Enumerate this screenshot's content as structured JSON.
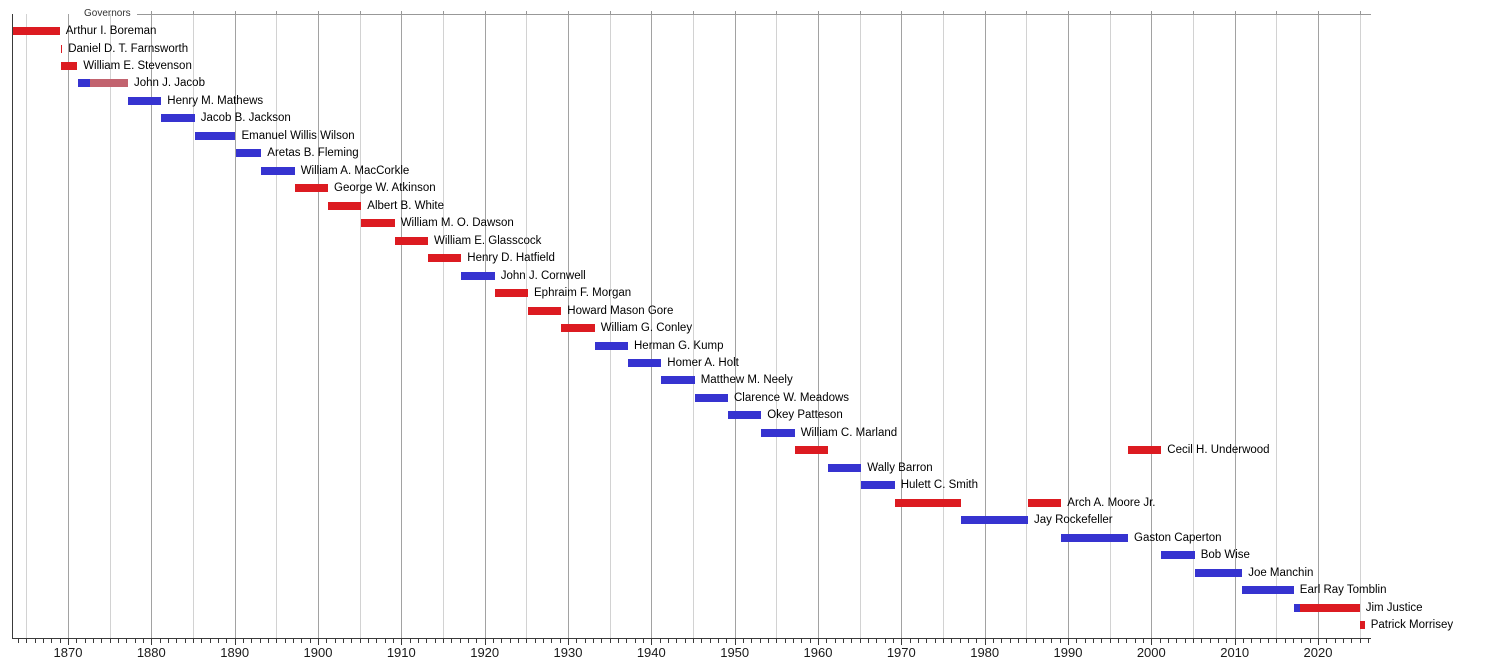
{
  "chart_data": {
    "type": "timeline",
    "title": "Governors",
    "x_axis": {
      "min_year": 1863.3,
      "max_year": 2026.4,
      "tick_labels": [
        "1870",
        "1880",
        "1890",
        "1900",
        "1910",
        "1920",
        "1930",
        "1940",
        "1950",
        "1960",
        "1970",
        "1980",
        "1990",
        "2000",
        "2010",
        "2020"
      ],
      "label_step": 10,
      "grid_step": 5,
      "minor_tick_step": 1,
      "grid_on": true
    },
    "colors": {
      "red": "#dc1b21",
      "blue": "#3633d0",
      "rose": "#c2636f",
      "grid_minor": "#d2d2d2",
      "grid_major": "#a2a2a2",
      "axis": "#3a3a3a",
      "top_border": "#989898",
      "label_text": "#000000",
      "title_text": "#333333"
    },
    "rows": [
      {
        "name": "Arthur I. Boreman",
        "segments": [
          {
            "start": 1863.4,
            "end": 1869.0,
            "color": "red"
          }
        ]
      },
      {
        "name": "Daniel D. T. Farnsworth",
        "segments": [
          {
            "start": 1869.1,
            "end": 1869.3,
            "color": "red"
          }
        ]
      },
      {
        "name": "William E. Stevenson",
        "segments": [
          {
            "start": 1869.2,
            "end": 1871.1,
            "color": "red"
          }
        ]
      },
      {
        "name": "John J. Jacob",
        "segments": [
          {
            "start": 1871.2,
            "end": 1872.6,
            "color": "blue"
          },
          {
            "start": 1872.6,
            "end": 1877.2,
            "color": "rose"
          }
        ]
      },
      {
        "name": "Henry M. Mathews",
        "segments": [
          {
            "start": 1877.2,
            "end": 1881.2,
            "color": "blue"
          }
        ]
      },
      {
        "name": "Jacob B. Jackson",
        "segments": [
          {
            "start": 1881.2,
            "end": 1885.2,
            "color": "blue"
          }
        ]
      },
      {
        "name": "Emanuel Willis Wilson",
        "segments": [
          {
            "start": 1885.2,
            "end": 1890.1,
            "color": "blue"
          }
        ]
      },
      {
        "name": "Aretas B. Fleming",
        "segments": [
          {
            "start": 1890.1,
            "end": 1893.2,
            "color": "blue"
          }
        ]
      },
      {
        "name": "William A. MacCorkle",
        "segments": [
          {
            "start": 1893.2,
            "end": 1897.2,
            "color": "blue"
          }
        ]
      },
      {
        "name": "George W. Atkinson",
        "segments": [
          {
            "start": 1897.2,
            "end": 1901.2,
            "color": "red"
          }
        ]
      },
      {
        "name": "Albert B. White",
        "segments": [
          {
            "start": 1901.2,
            "end": 1905.2,
            "color": "red"
          }
        ]
      },
      {
        "name": "William M. O. Dawson",
        "segments": [
          {
            "start": 1905.2,
            "end": 1909.2,
            "color": "red"
          }
        ]
      },
      {
        "name": "William E. Glasscock",
        "segments": [
          {
            "start": 1909.2,
            "end": 1913.2,
            "color": "red"
          }
        ]
      },
      {
        "name": "Henry D. Hatfield",
        "segments": [
          {
            "start": 1913.2,
            "end": 1917.2,
            "color": "red"
          }
        ]
      },
      {
        "name": "John J. Cornwell",
        "segments": [
          {
            "start": 1917.2,
            "end": 1921.2,
            "color": "blue"
          }
        ]
      },
      {
        "name": "Ephraim F. Morgan",
        "segments": [
          {
            "start": 1921.2,
            "end": 1925.2,
            "color": "red"
          }
        ]
      },
      {
        "name": "Howard Mason Gore",
        "segments": [
          {
            "start": 1925.2,
            "end": 1929.2,
            "color": "red"
          }
        ]
      },
      {
        "name": "William G. Conley",
        "segments": [
          {
            "start": 1929.2,
            "end": 1933.2,
            "color": "red"
          }
        ]
      },
      {
        "name": "Herman G. Kump",
        "segments": [
          {
            "start": 1933.2,
            "end": 1937.2,
            "color": "blue"
          }
        ]
      },
      {
        "name": "Homer A. Holt",
        "segments": [
          {
            "start": 1937.2,
            "end": 1941.2,
            "color": "blue"
          }
        ]
      },
      {
        "name": "Matthew M. Neely",
        "segments": [
          {
            "start": 1941.2,
            "end": 1945.2,
            "color": "blue"
          }
        ]
      },
      {
        "name": "Clarence W. Meadows",
        "segments": [
          {
            "start": 1945.2,
            "end": 1949.2,
            "color": "blue"
          }
        ]
      },
      {
        "name": "Okey Patteson",
        "segments": [
          {
            "start": 1949.2,
            "end": 1953.2,
            "color": "blue"
          }
        ]
      },
      {
        "name": "William C. Marland",
        "segments": [
          {
            "start": 1953.2,
            "end": 1957.2,
            "color": "blue"
          }
        ]
      },
      {
        "name": "Cecil H. Underwood",
        "segments": [
          {
            "start": 1957.2,
            "end": 1961.2,
            "color": "red"
          },
          {
            "start": 1997.2,
            "end": 2001.2,
            "color": "red"
          }
        ]
      },
      {
        "name": "Wally Barron",
        "segments": [
          {
            "start": 1961.2,
            "end": 1965.2,
            "color": "blue"
          }
        ]
      },
      {
        "name": "Hulett C. Smith",
        "segments": [
          {
            "start": 1965.2,
            "end": 1969.2,
            "color": "blue"
          }
        ]
      },
      {
        "name": "Arch A. Moore Jr.",
        "segments": [
          {
            "start": 1969.2,
            "end": 1977.2,
            "color": "red"
          },
          {
            "start": 1985.2,
            "end": 1989.2,
            "color": "red"
          }
        ]
      },
      {
        "name": "Jay Rockefeller",
        "segments": [
          {
            "start": 1977.2,
            "end": 1985.2,
            "color": "blue"
          }
        ]
      },
      {
        "name": "Gaston Caperton",
        "segments": [
          {
            "start": 1989.2,
            "end": 1997.2,
            "color": "blue"
          }
        ]
      },
      {
        "name": "Bob Wise",
        "segments": [
          {
            "start": 2001.2,
            "end": 2005.2,
            "color": "blue"
          }
        ]
      },
      {
        "name": "Joe Manchin",
        "segments": [
          {
            "start": 2005.2,
            "end": 2010.9,
            "color": "blue"
          }
        ]
      },
      {
        "name": "Earl Ray Tomblin",
        "segments": [
          {
            "start": 2010.9,
            "end": 2017.1,
            "color": "blue"
          }
        ]
      },
      {
        "name": "Jim Justice",
        "segments": [
          {
            "start": 2017.1,
            "end": 2017.8,
            "color": "blue"
          },
          {
            "start": 2017.8,
            "end": 2025.0,
            "color": "red"
          }
        ]
      },
      {
        "name": "Patrick Morrisey",
        "segments": [
          {
            "start": 2025.0,
            "end": 2025.6,
            "color": "red"
          }
        ]
      }
    ]
  }
}
